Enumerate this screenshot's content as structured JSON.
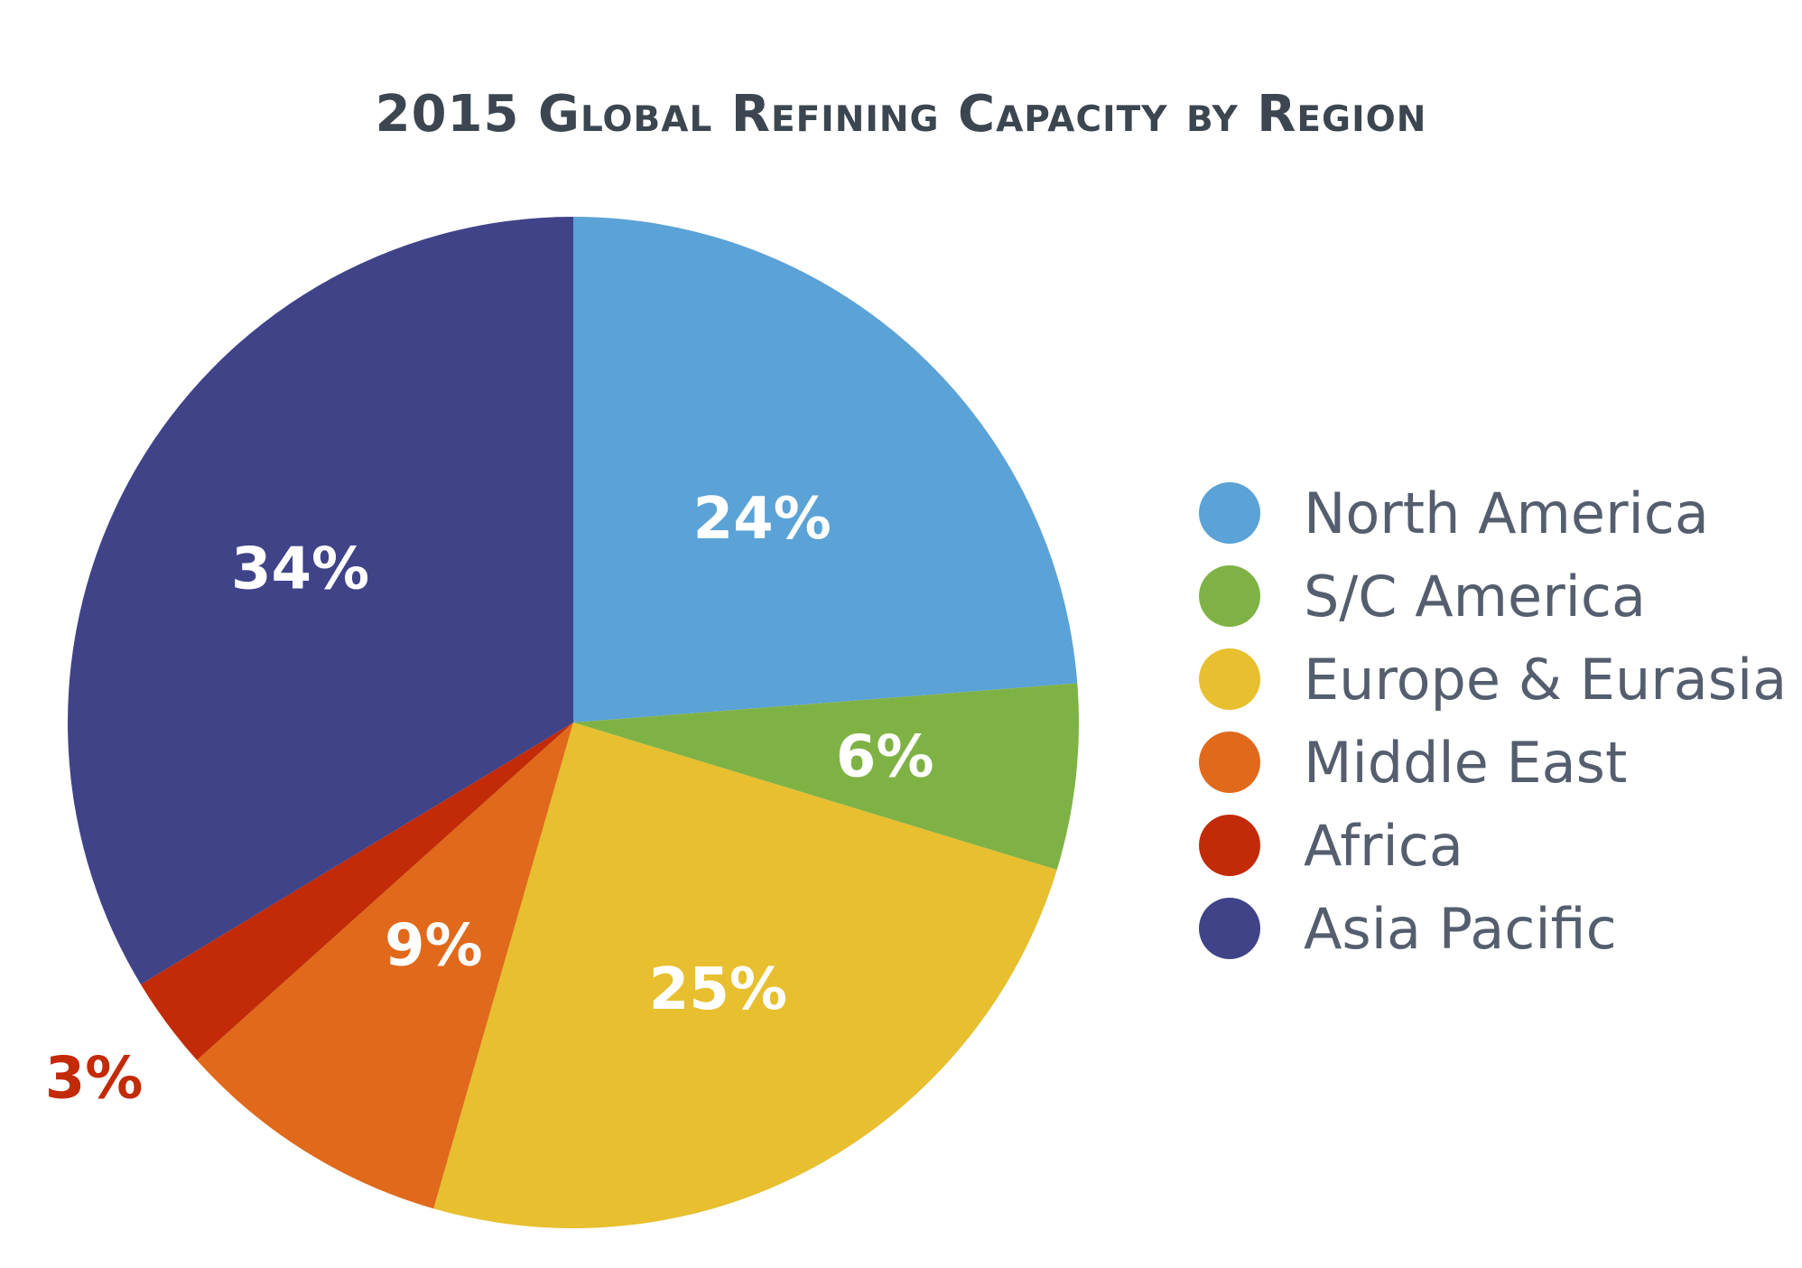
{
  "chart_data": {
    "type": "pie",
    "title": "2015 Global Refining Capacity by Region",
    "slices": [
      {
        "label": "North America",
        "value": 24,
        "display": "24%",
        "color": "#5ba2d6",
        "label_color": "#ffffff"
      },
      {
        "label": "S/C America",
        "value": 6,
        "display": "6%",
        "color": "#7fb245",
        "label_color": "#ffffff"
      },
      {
        "label": "Europe & Eurasia",
        "value": 25,
        "display": "25%",
        "color": "#e7bf2f",
        "label_color": "#ffffff"
      },
      {
        "label": "Middle East",
        "value": 9,
        "display": "9%",
        "color": "#e0691b",
        "label_color": "#ffffff"
      },
      {
        "label": "Africa",
        "value": 3,
        "display": "3%",
        "color": "#c22a08",
        "label_color": "#c22a08"
      },
      {
        "label": "Asia Pacific",
        "value": 34,
        "display": "34%",
        "color": "#404388",
        "label_color": "#ffffff"
      }
    ],
    "legend_position": "right"
  }
}
